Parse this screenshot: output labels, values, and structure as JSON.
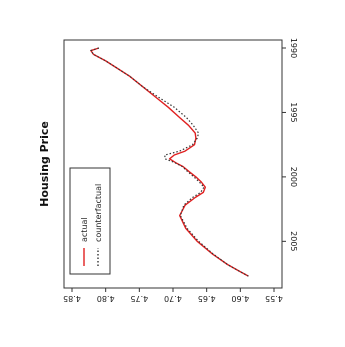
{
  "chart_data": {
    "type": "line",
    "orientation": "rotated-90-clockwise",
    "title": "Housing Price",
    "xlabel": "",
    "ylabel": "",
    "xlim": [
      1990,
      2008
    ],
    "ylim": [
      4.55,
      4.85
    ],
    "x_ticks": [
      "1990",
      "1995",
      "2000",
      "2005"
    ],
    "y_ticks": [
      "4.55",
      "4.60",
      "4.65",
      "4.70",
      "4.75",
      "4.80",
      "4.85"
    ],
    "grid": false,
    "legend_position": "bottom-left",
    "series": [
      {
        "name": "actual",
        "color": "#e02020",
        "style": "solid",
        "x": [
          1990.0,
          1990.2,
          1990.5,
          1991.0,
          1991.6,
          1992.2,
          1993.0,
          1993.8,
          1994.6,
          1995.4,
          1996.0,
          1996.6,
          1997.0,
          1997.5,
          1998.0,
          1998.3,
          1998.6,
          1998.9,
          1999.2,
          1999.6,
          2000.0,
          2000.4,
          2000.8,
          2001.2,
          2001.6,
          2002.2,
          2003.0,
          2004.0,
          2005.0,
          2006.0,
          2006.8,
          2007.3,
          2007.7
        ],
        "y": [
          4.81,
          4.822,
          4.818,
          4.8,
          4.782,
          4.764,
          4.745,
          4.726,
          4.707,
          4.69,
          4.677,
          4.667,
          4.666,
          4.668,
          4.682,
          4.698,
          4.705,
          4.696,
          4.685,
          4.676,
          4.666,
          4.658,
          4.652,
          4.655,
          4.667,
          4.682,
          4.69,
          4.681,
          4.664,
          4.641,
          4.619,
          4.602,
          4.588
        ]
      },
      {
        "name": "counterfactual",
        "color": "#333333",
        "style": "dotted",
        "x": [
          1990.0,
          1990.2,
          1990.5,
          1991.0,
          1991.6,
          1992.2,
          1993.0,
          1993.8,
          1994.6,
          1995.4,
          1996.0,
          1996.6,
          1997.0,
          1997.5,
          1998.0,
          1998.3,
          1998.6,
          1998.9,
          1999.2,
          1999.6,
          2000.0,
          2000.4,
          2000.8,
          2001.2,
          2001.6,
          2002.2,
          2003.0,
          2004.0,
          2005.0,
          2006.0,
          2006.8,
          2007.3,
          2007.7
        ],
        "y": [
          4.81,
          4.822,
          4.818,
          4.8,
          4.782,
          4.764,
          4.745,
          4.722,
          4.698,
          4.68,
          4.67,
          4.662,
          4.664,
          4.671,
          4.69,
          4.712,
          4.712,
          4.697,
          4.686,
          4.678,
          4.669,
          4.661,
          4.654,
          4.659,
          4.671,
          4.684,
          4.689,
          4.679,
          4.662,
          4.64,
          4.619,
          4.602,
          4.588
        ]
      }
    ]
  }
}
